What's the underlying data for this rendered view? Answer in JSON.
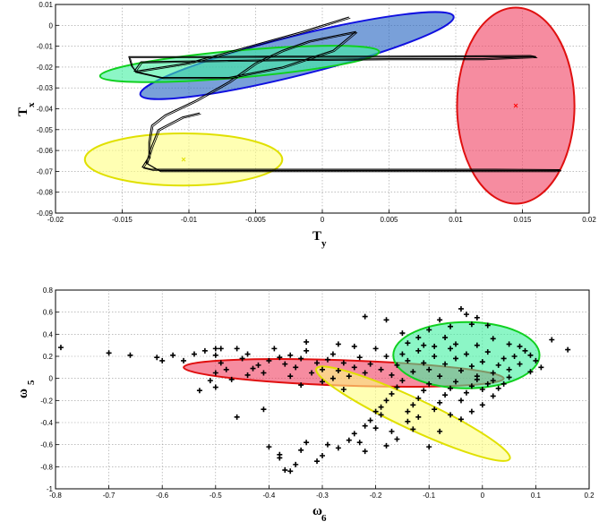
{
  "chart_data": [
    {
      "type": "scatter",
      "title": "",
      "xlabel": "T",
      "xlabel_sub": "y",
      "ylabel": "T",
      "ylabel_sub": "x",
      "xlim": [
        -0.02,
        0.02
      ],
      "ylim": [
        -0.09,
        0.01
      ],
      "grid": true,
      "xticks": [
        "-0.02",
        "-0.015",
        "-0.01",
        "-0.005",
        "0",
        "0.005",
        "0.01",
        "0.015",
        "0.02"
      ],
      "yticks": [
        "0.01",
        "0",
        "-0.01",
        "-0.02",
        "-0.03",
        "-0.04",
        "-0.05",
        "-0.06",
        "-0.07",
        "-0.08",
        "-0.09"
      ],
      "trajectory": [
        [
          0.002,
          0.004
        ],
        [
          -0.0015,
          -0.003
        ],
        [
          -0.006,
          -0.011
        ],
        [
          -0.01,
          -0.018
        ],
        [
          -0.014,
          -0.022
        ],
        [
          -0.0143,
          -0.0195
        ],
        [
          -0.0145,
          -0.015
        ],
        [
          -0.01,
          -0.015
        ],
        [
          -0.004,
          -0.0148
        ],
        [
          0.004,
          -0.0148
        ],
        [
          0.01,
          -0.0147
        ],
        [
          0.0156,
          -0.0145
        ],
        [
          0.016,
          -0.015
        ],
        [
          0.012,
          -0.016
        ],
        [
          0.005,
          -0.016
        ],
        [
          -0.003,
          -0.0165
        ],
        [
          -0.009,
          -0.017
        ],
        [
          -0.0136,
          -0.0175
        ],
        [
          -0.0141,
          -0.022
        ],
        [
          -0.012,
          -0.025
        ],
        [
          -0.007,
          -0.025
        ],
        [
          -0.003,
          -0.02
        ],
        [
          0.0008,
          -0.012
        ],
        [
          0.0025,
          -0.003
        ],
        [
          -0.001,
          -0.0075
        ],
        [
          -0.003,
          -0.012
        ],
        [
          -0.005,
          -0.018
        ],
        [
          -0.007,
          -0.027
        ],
        [
          -0.0095,
          -0.036
        ],
        [
          -0.0118,
          -0.043
        ],
        [
          -0.0128,
          -0.048
        ],
        [
          -0.013,
          -0.056
        ],
        [
          -0.013,
          -0.063
        ],
        [
          -0.0135,
          -0.068
        ],
        [
          -0.0128,
          -0.069
        ],
        [
          -0.005,
          -0.069
        ],
        [
          0.005,
          -0.069
        ],
        [
          0.013,
          -0.069
        ],
        [
          0.0178,
          -0.0692
        ],
        [
          0.0175,
          -0.0697
        ],
        [
          0.01,
          -0.0697
        ],
        [
          0.002,
          -0.0697
        ],
        [
          -0.006,
          -0.0697
        ],
        [
          -0.0122,
          -0.0697
        ],
        [
          -0.0132,
          -0.066
        ],
        [
          -0.0128,
          -0.058
        ],
        [
          -0.0123,
          -0.05
        ],
        [
          -0.0105,
          -0.044
        ],
        [
          -0.0092,
          -0.042
        ]
      ],
      "ellipses": [
        {
          "color": "#2060c0",
          "edge": "#1010e0",
          "cx": -0.0019,
          "cy": -0.0145,
          "rx": 0.0121,
          "ry": 0.0095,
          "angle_deg": 14
        },
        {
          "color": "#40f0a0",
          "edge": "#10d020",
          "cx": -0.0062,
          "cy": -0.0185,
          "rx": 0.0105,
          "ry": 0.0065,
          "angle_deg": 5
        },
        {
          "color": "#f04060",
          "edge": "#e01010",
          "cx": 0.0145,
          "cy": -0.0385,
          "rx": 0.0044,
          "ry": 0.047,
          "angle_deg": 0
        },
        {
          "color": "#ffff80",
          "edge": "#e0e000",
          "cx": -0.0104,
          "cy": -0.0643,
          "rx": 0.0074,
          "ry": 0.0125,
          "angle_deg": 0
        }
      ],
      "centers": [
        {
          "x": 0.0145,
          "y": -0.0385,
          "color": "#ff0000"
        },
        {
          "x": -0.0104,
          "y": -0.0643,
          "color": "#e0e000"
        }
      ]
    },
    {
      "type": "scatter",
      "title": "",
      "xlabel": "ω",
      "xlabel_sub": "6",
      "ylabel": "ω",
      "ylabel_sub": "5",
      "xlim": [
        -0.8,
        0.2
      ],
      "ylim": [
        -1,
        0.8
      ],
      "grid": true,
      "xticks": [
        "-0.8",
        "-0.7",
        "-0.6",
        "-0.5",
        "-0.4",
        "-0.3",
        "-0.2",
        "-0.1",
        "0",
        "0.1",
        "0.2"
      ],
      "yticks": [
        "0.8",
        "0.6",
        "0.4",
        "0.2",
        "0",
        "-0.2",
        "-0.4",
        "-0.6",
        "-0.8",
        "-1"
      ],
      "points": [
        [
          -0.79,
          0.28
        ],
        [
          -0.7,
          0.23
        ],
        [
          -0.66,
          0.21
        ],
        [
          -0.61,
          0.19
        ],
        [
          -0.6,
          0.16
        ],
        [
          -0.58,
          0.21
        ],
        [
          -0.56,
          0.16
        ],
        [
          -0.54,
          0.22
        ],
        [
          -0.52,
          0.25
        ],
        [
          -0.5,
          0.27
        ],
        [
          -0.5,
          0.21
        ],
        [
          -0.49,
          0.14
        ],
        [
          -0.48,
          0.08
        ],
        [
          -0.5,
          0.05
        ],
        [
          -0.51,
          -0.02
        ],
        [
          -0.53,
          -0.11
        ],
        [
          -0.5,
          -0.08
        ],
        [
          -0.49,
          0.27
        ],
        [
          -0.46,
          0.27
        ],
        [
          -0.45,
          0.18
        ],
        [
          -0.44,
          0.22
        ],
        [
          -0.43,
          0.09
        ],
        [
          -0.41,
          0.05
        ],
        [
          -0.4,
          0.16
        ],
        [
          -0.39,
          0.27
        ],
        [
          -0.38,
          0.19
        ],
        [
          -0.37,
          0.13
        ],
        [
          -0.36,
          0.21
        ],
        [
          -0.35,
          0.1
        ],
        [
          -0.34,
          0.18
        ],
        [
          -0.33,
          0.25
        ],
        [
          -0.32,
          0.05
        ],
        [
          -0.31,
          0.14
        ],
        [
          -0.3,
          0.08
        ],
        [
          -0.29,
          0.17
        ],
        [
          -0.28,
          0.22
        ],
        [
          -0.27,
          0.07
        ],
        [
          -0.26,
          0.14
        ],
        [
          -0.25,
          0.02
        ],
        [
          -0.24,
          0.1
        ],
        [
          -0.23,
          0.19
        ],
        [
          -0.22,
          0.05
        ],
        [
          -0.21,
          0.13
        ],
        [
          -0.2,
          0.27
        ],
        [
          -0.19,
          0.08
        ],
        [
          -0.18,
          0.2
        ],
        [
          -0.17,
          0.03
        ],
        [
          -0.16,
          0.12
        ],
        [
          -0.15,
          0.22
        ],
        [
          -0.14,
          0.16
        ],
        [
          -0.13,
          0.06
        ],
        [
          -0.12,
          0.25
        ],
        [
          -0.11,
          0.14
        ],
        [
          -0.1,
          0.08
        ],
        [
          -0.09,
          0.2
        ],
        [
          -0.08,
          0.02
        ],
        [
          -0.07,
          0.13
        ],
        [
          -0.06,
          0.27
        ],
        [
          -0.05,
          0.18
        ],
        [
          -0.04,
          0.07
        ],
        [
          -0.03,
          0.22
        ],
        [
          -0.02,
          0.11
        ],
        [
          -0.01,
          0.02
        ],
        [
          0,
          0.15
        ],
        [
          0.01,
          0.24
        ],
        [
          0.02,
          0.05
        ],
        [
          0.03,
          0.12
        ],
        [
          0.04,
          0.18
        ],
        [
          0.05,
          0.08
        ],
        [
          0.06,
          0.2
        ],
        [
          0.07,
          0.13
        ],
        [
          0.08,
          0.25
        ],
        [
          0.09,
          0.21
        ],
        [
          0.1,
          0.16
        ],
        [
          0.13,
          0.35
        ],
        [
          0.16,
          0.26
        ],
        [
          -0.22,
          0.56
        ],
        [
          -0.18,
          0.53
        ],
        [
          -0.15,
          0.41
        ],
        [
          -0.12,
          0.37
        ],
        [
          -0.1,
          0.44
        ],
        [
          -0.08,
          0.53
        ],
        [
          -0.06,
          0.47
        ],
        [
          -0.04,
          0.63
        ],
        [
          -0.03,
          0.58
        ],
        [
          -0.02,
          0.49
        ],
        [
          -0.01,
          0.55
        ],
        [
          0.01,
          0.48
        ],
        [
          -0.4,
          -0.62
        ],
        [
          -0.38,
          -0.72
        ],
        [
          -0.37,
          -0.83
        ],
        [
          -0.35,
          -0.78
        ],
        [
          -0.34,
          -0.65
        ],
        [
          -0.33,
          -0.58
        ],
        [
          -0.31,
          -0.75
        ],
        [
          -0.3,
          -0.7
        ],
        [
          -0.29,
          -0.6
        ],
        [
          -0.36,
          -0.84
        ],
        [
          -0.38,
          -0.69
        ],
        [
          -0.27,
          -0.63
        ],
        [
          -0.25,
          -0.56
        ],
        [
          -0.24,
          -0.5
        ],
        [
          -0.23,
          -0.58
        ],
        [
          -0.22,
          -0.43
        ],
        [
          -0.21,
          -0.38
        ],
        [
          -0.2,
          -0.3
        ],
        [
          -0.19,
          -0.26
        ],
        [
          -0.18,
          -0.2
        ],
        [
          -0.17,
          -0.14
        ],
        [
          -0.16,
          -0.08
        ],
        [
          -0.15,
          -0.02
        ],
        [
          -0.14,
          -0.3
        ],
        [
          -0.13,
          -0.24
        ],
        [
          -0.12,
          -0.18
        ],
        [
          -0.11,
          -0.11
        ],
        [
          -0.1,
          -0.05
        ],
        [
          -0.09,
          -0.28
        ],
        [
          -0.08,
          -0.22
        ],
        [
          -0.07,
          -0.15
        ],
        [
          -0.06,
          -0.09
        ],
        [
          -0.05,
          -0.03
        ],
        [
          -0.04,
          -0.2
        ],
        [
          -0.03,
          -0.13
        ],
        [
          -0.02,
          -0.07
        ],
        [
          -0.01,
          -0.01
        ],
        [
          0,
          -0.1
        ],
        [
          0.01,
          -0.05
        ],
        [
          0.02,
          -0.02
        ],
        [
          0.03,
          -0.09
        ],
        [
          -0.18,
          -0.61
        ],
        [
          -0.16,
          -0.55
        ],
        [
          -0.1,
          -0.62
        ],
        [
          -0.08,
          -0.48
        ],
        [
          -0.2,
          -0.45
        ],
        [
          -0.22,
          -0.66
        ],
        [
          -0.28,
          0.0
        ],
        [
          -0.3,
          -0.03
        ],
        [
          -0.26,
          -0.1
        ],
        [
          -0.34,
          -0.06
        ],
        [
          -0.36,
          0.02
        ],
        [
          -0.42,
          0.12
        ],
        [
          -0.44,
          0.03
        ],
        [
          -0.47,
          -0.01
        ],
        [
          -0.41,
          -0.28
        ],
        [
          -0.46,
          -0.35
        ],
        [
          -0.19,
          -0.33
        ],
        [
          -0.14,
          -0.39
        ],
        [
          -0.12,
          -0.35
        ],
        [
          -0.17,
          -0.48
        ],
        [
          -0.13,
          -0.46
        ],
        [
          -0.06,
          -0.33
        ],
        [
          -0.04,
          -0.37
        ],
        [
          -0.02,
          -0.3
        ],
        [
          0.0,
          -0.24
        ],
        [
          0.02,
          -0.16
        ],
        [
          0.04,
          -0.05
        ],
        [
          0.05,
          0.01
        ],
        [
          -0.01,
          0.3
        ],
        [
          0.02,
          0.36
        ],
        [
          -0.05,
          0.31
        ],
        [
          -0.07,
          0.37
        ],
        [
          -0.09,
          0.29
        ],
        [
          0.05,
          0.31
        ],
        [
          0.07,
          0.29
        ],
        [
          0.09,
          0.06
        ],
        [
          0.11,
          0.1
        ],
        [
          -0.27,
          0.31
        ],
        [
          -0.33,
          0.33
        ],
        [
          -0.24,
          0.29
        ],
        [
          -0.14,
          0.32
        ],
        [
          -0.11,
          0.3
        ]
      ],
      "ellipses": [
        {
          "color": "#f04060",
          "edge": "#e01010",
          "cx": -0.26,
          "cy": 0.05,
          "rx": 0.3,
          "ry": 0.115,
          "angle_deg": -2
        },
        {
          "color": "#40f0a0",
          "edge": "#10d020",
          "cx": -0.03,
          "cy": 0.21,
          "rx": 0.137,
          "ry": 0.3,
          "angle_deg": 0
        },
        {
          "color": "#ffff80",
          "edge": "#e0e000",
          "cx": -0.13,
          "cy": -0.32,
          "rx": 0.2,
          "ry": 0.14,
          "angle_deg": -25
        }
      ]
    }
  ]
}
